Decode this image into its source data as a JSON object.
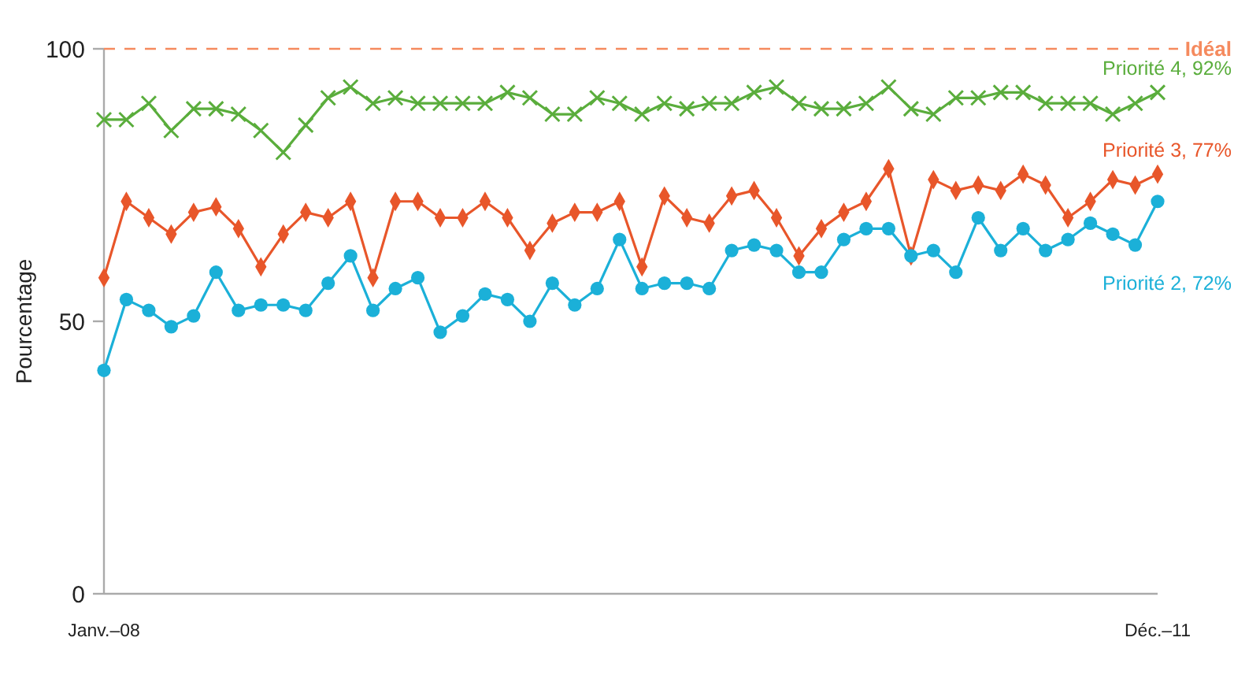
{
  "chart_data": {
    "type": "line",
    "ylabel": "Pourcentage",
    "categories": [
      "Janv.–08",
      null,
      null,
      null,
      null,
      null,
      null,
      null,
      null,
      null,
      null,
      null,
      null,
      null,
      null,
      null,
      null,
      null,
      null,
      null,
      null,
      null,
      null,
      null,
      null,
      null,
      null,
      null,
      null,
      null,
      null,
      null,
      null,
      null,
      null,
      null,
      null,
      null,
      null,
      null,
      null,
      null,
      null,
      null,
      null,
      null,
      null,
      "Déc.–11"
    ],
    "ylim": [
      0,
      100
    ],
    "yticks": [
      0,
      50,
      100
    ],
    "grid": false,
    "ref_lines": [
      {
        "axis": "y",
        "value": 100,
        "label": "Idéal",
        "color": "#f58a5e",
        "line_style": "dashed"
      }
    ],
    "series": [
      {
        "name": "Priorité 4, 92%",
        "color": "#5aad3c",
        "marker": "cross",
        "values": [
          87,
          87,
          90,
          85,
          89,
          89,
          88,
          85,
          81,
          86,
          91,
          93,
          90,
          91,
          90,
          90,
          90,
          90,
          92,
          91,
          88,
          88,
          91,
          90,
          88,
          90,
          89,
          90,
          90,
          92,
          93,
          90,
          89,
          89,
          90,
          93,
          89,
          88,
          91,
          91,
          92,
          92,
          90,
          90,
          90,
          88,
          90,
          92
        ]
      },
      {
        "name": "Priorité 3, 77%",
        "color": "#e8562a",
        "marker": "diamond",
        "values": [
          58,
          72,
          69,
          66,
          70,
          71,
          67,
          60,
          66,
          70,
          69,
          72,
          58,
          72,
          72,
          69,
          69,
          72,
          69,
          63,
          68,
          70,
          70,
          72,
          60,
          73,
          69,
          68,
          73,
          74,
          69,
          62,
          67,
          70,
          72,
          78,
          62,
          76,
          74,
          75,
          74,
          77,
          75,
          69,
          72,
          76,
          75,
          77
        ]
      },
      {
        "name": "Priorité 2, 72%",
        "color": "#1bb0d8",
        "marker": "circle",
        "values": [
          41,
          54,
          52,
          49,
          51,
          59,
          52,
          53,
          53,
          52,
          57,
          62,
          52,
          56,
          58,
          48,
          51,
          55,
          54,
          50,
          57,
          53,
          56,
          65,
          56,
          57,
          57,
          56,
          63,
          64,
          63,
          59,
          59,
          65,
          67,
          67,
          62,
          63,
          59,
          69,
          63,
          67,
          63,
          65,
          68,
          66,
          64,
          72
        ]
      }
    ]
  }
}
